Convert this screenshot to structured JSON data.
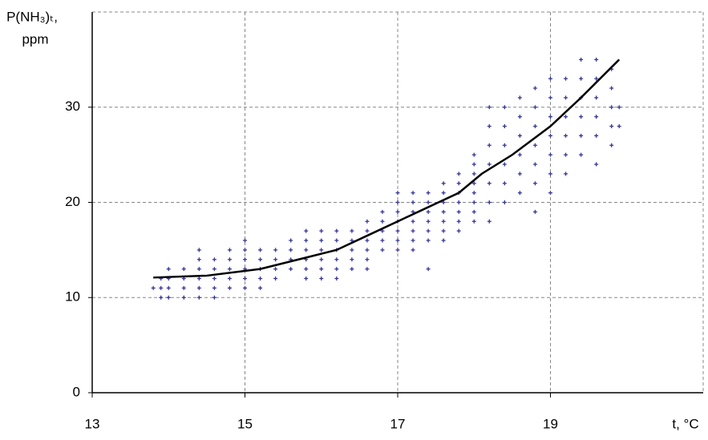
{
  "chart_data": {
    "type": "scatter",
    "y_label": [
      "P(NH₃)ₜ,",
      "ppm"
    ],
    "x_label": "t, °C",
    "xlim": [
      13,
      21
    ],
    "ylim": [
      0,
      40
    ],
    "xticks": [
      13,
      15,
      17,
      19
    ],
    "yticks": [
      0,
      10,
      20,
      30
    ],
    "grid": true,
    "series": [
      {
        "type": "scatter",
        "color": "#333399",
        "x": [
          13.8,
          13.9,
          13.9,
          13.9,
          14.0,
          14.0,
          14.0,
          14.0,
          14.2,
          14.2,
          14.2,
          14.2,
          14.4,
          14.4,
          14.4,
          14.4,
          14.4,
          14.4,
          14.6,
          14.6,
          14.6,
          14.6,
          14.6,
          14.8,
          14.8,
          14.8,
          14.8,
          14.8,
          15.0,
          15.0,
          15.0,
          15.0,
          15.0,
          15.0,
          15.2,
          15.2,
          15.2,
          15.2,
          15.2,
          15.4,
          15.4,
          15.4,
          15.4,
          15.6,
          15.6,
          15.6,
          15.6,
          15.8,
          15.8,
          15.8,
          15.8,
          15.8,
          15.8,
          16.0,
          16.0,
          16.0,
          16.0,
          16.0,
          16.0,
          16.2,
          16.2,
          16.2,
          16.2,
          16.2,
          16.2,
          16.4,
          16.4,
          16.4,
          16.4,
          16.4,
          16.6,
          16.6,
          16.6,
          16.6,
          16.6,
          16.6,
          16.8,
          16.8,
          16.8,
          16.8,
          16.8,
          17.0,
          17.0,
          17.0,
          17.0,
          17.0,
          17.0,
          17.0,
          17.2,
          17.2,
          17.2,
          17.2,
          17.2,
          17.2,
          17.2,
          17.4,
          17.4,
          17.4,
          17.4,
          17.4,
          17.4,
          17.4,
          17.6,
          17.6,
          17.6,
          17.6,
          17.6,
          17.6,
          17.6,
          17.8,
          17.8,
          17.8,
          17.8,
          17.8,
          17.8,
          17.8,
          18.0,
          18.0,
          18.0,
          18.0,
          18.0,
          18.0,
          18.0,
          18.0,
          18.2,
          18.2,
          18.2,
          18.2,
          18.2,
          18.2,
          18.2,
          18.4,
          18.4,
          18.4,
          18.4,
          18.4,
          18.4,
          18.6,
          18.6,
          18.6,
          18.6,
          18.6,
          18.6,
          18.8,
          18.8,
          18.8,
          18.8,
          18.8,
          18.8,
          18.8,
          19.0,
          19.0,
          19.0,
          19.0,
          19.0,
          19.0,
          19.0,
          19.2,
          19.2,
          19.2,
          19.2,
          19.2,
          19.2,
          19.4,
          19.4,
          19.4,
          19.4,
          19.4,
          19.4,
          19.6,
          19.6,
          19.6,
          19.6,
          19.6,
          19.6,
          19.8,
          19.8,
          19.8,
          19.8,
          19.8,
          19.9,
          19.9
        ],
        "values": [
          11,
          10,
          11,
          12,
          10,
          11,
          12,
          13,
          10,
          11,
          12,
          13,
          10,
          11,
          12,
          13,
          14,
          15,
          10,
          11,
          12,
          13,
          14,
          11,
          12,
          13,
          14,
          15,
          11,
          12,
          13,
          14,
          15,
          16,
          11,
          12,
          13,
          14,
          15,
          12,
          13,
          14,
          15,
          13,
          14,
          15,
          16,
          12,
          13,
          14,
          15,
          16,
          17,
          12,
          13,
          14,
          15,
          16,
          17,
          12,
          13,
          14,
          15,
          16,
          17,
          13,
          14,
          15,
          16,
          17,
          13,
          14,
          15,
          16,
          17,
          18,
          15,
          16,
          17,
          18,
          19,
          15,
          16,
          17,
          18,
          19,
          20,
          21,
          15,
          16,
          17,
          18,
          19,
          20,
          21,
          13,
          16,
          17,
          18,
          19,
          20,
          21,
          16,
          17,
          18,
          19,
          20,
          21,
          22,
          17,
          18,
          19,
          20,
          21,
          22,
          23,
          18,
          19,
          20,
          21,
          22,
          23,
          24,
          25,
          18,
          20,
          22,
          24,
          26,
          28,
          30,
          20,
          22,
          24,
          26,
          28,
          30,
          21,
          23,
          25,
          27,
          29,
          31,
          19,
          22,
          24,
          26,
          28,
          30,
          32,
          21,
          23,
          25,
          27,
          29,
          31,
          33,
          23,
          25,
          27,
          29,
          31,
          33,
          25,
          27,
          29,
          31,
          33,
          35,
          24,
          27,
          29,
          31,
          33,
          35,
          26,
          28,
          30,
          32,
          34,
          28,
          30
        ]
      },
      {
        "type": "line",
        "color": "#000000",
        "x": [
          13.8,
          14.5,
          15.2,
          15.7,
          16.2,
          16.6,
          17.0,
          17.4,
          17.8,
          18.1,
          18.5,
          19.0,
          19.4,
          19.9
        ],
        "values": [
          12.1,
          12.3,
          13,
          14,
          15,
          16.5,
          18,
          19.5,
          21,
          23,
          25,
          28,
          31,
          35
        ]
      }
    ]
  }
}
